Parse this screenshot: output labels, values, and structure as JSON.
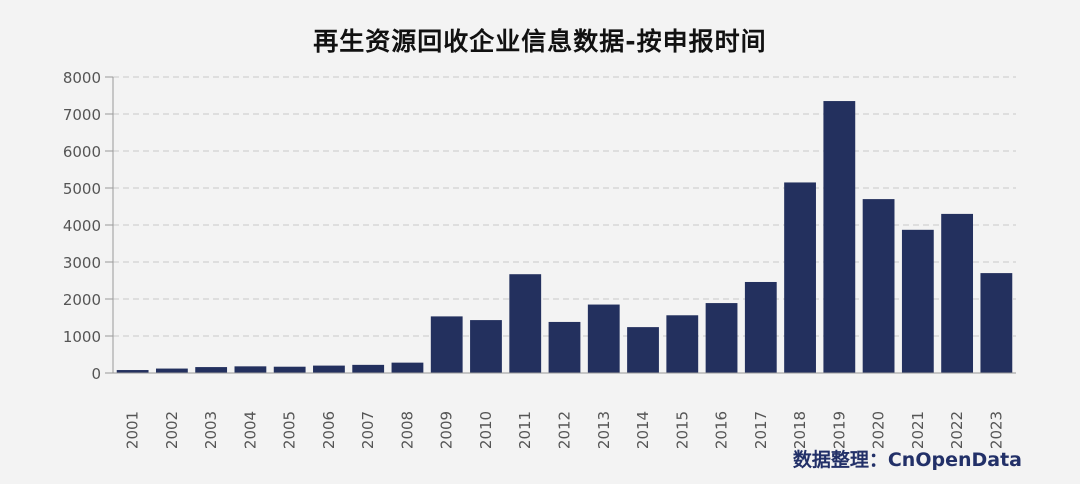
{
  "chart_data": {
    "type": "bar",
    "title": "再生资源回收企业信息数据-按申报时间",
    "xlabel": "",
    "ylabel": "",
    "categories": [
      "2001",
      "2002",
      "2003",
      "2004",
      "2005",
      "2006",
      "2007",
      "2008",
      "2009",
      "2010",
      "2011",
      "2012",
      "2013",
      "2014",
      "2015",
      "2016",
      "2017",
      "2018",
      "2019",
      "2020",
      "2021",
      "2022",
      "2023"
    ],
    "values": [
      80,
      120,
      160,
      180,
      170,
      200,
      220,
      280,
      1530,
      1430,
      2670,
      1380,
      1850,
      1240,
      1560,
      1890,
      2460,
      5150,
      7350,
      4700,
      3870,
      4300,
      2700
    ],
    "ylim": [
      0,
      8000
    ],
    "yticks": [
      "0",
      "1000",
      "2000",
      "3000",
      "4000",
      "5000",
      "6000",
      "7000",
      "8000"
    ],
    "grid": true,
    "bar_color": "#23305e",
    "source_note": "数据整理：CnOpenData"
  }
}
